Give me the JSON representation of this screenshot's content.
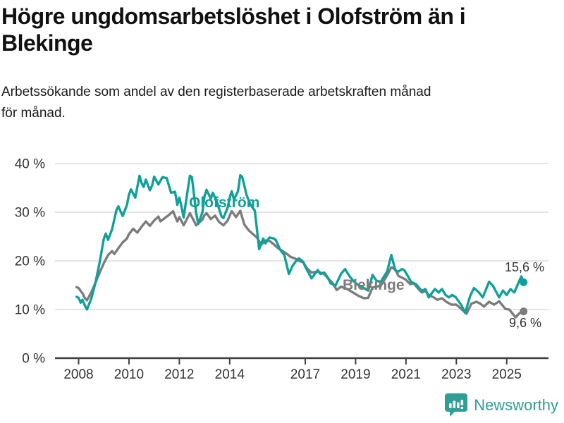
{
  "header": {
    "title_lines": [
      "Högre ungdomsarbetslöshet i Olofström än i",
      "Blekinge"
    ],
    "subtitle_lines": [
      "Arbetssökande som andel av den registerbaserade arbetskraften månad",
      "för månad."
    ]
  },
  "chart_data": {
    "type": "line",
    "title": "Högre ungdomsarbetslöshet i Olofström än i Blekinge",
    "subtitle": "Arbetssökande som andel av den registerbaserade arbetskraften månad för månad.",
    "unit": "%",
    "grid": "horizontal",
    "legend_position": "inline-labels",
    "xlim": [
      2007.1,
      2026.6
    ],
    "ylim": [
      0,
      42
    ],
    "x_tick_years": [
      2008,
      2010,
      2012,
      2014,
      2017,
      2019,
      2021,
      2023,
      2025
    ],
    "x_tick_labels": [
      "2008",
      "2010",
      "2012",
      "2014",
      "2017",
      "2019",
      "2021",
      "2023",
      "2025"
    ],
    "y_ticks": [
      0,
      10,
      20,
      30,
      40
    ],
    "y_tick_labels": [
      "0 %",
      "10 %",
      "20 %",
      "30 %",
      "40 %"
    ],
    "series": [
      {
        "name": "Olofström",
        "color": "#0fa199",
        "end_value": 15.6,
        "end_label": "15,6 %",
        "points": [
          [
            2007.92,
            12.6
          ],
          [
            2008.0,
            12.4
          ],
          [
            2008.08,
            11.4
          ],
          [
            2008.15,
            12.0
          ],
          [
            2008.25,
            10.8
          ],
          [
            2008.33,
            10.0
          ],
          [
            2008.5,
            12.2
          ],
          [
            2008.67,
            15.5
          ],
          [
            2008.83,
            19.5
          ],
          [
            2009.0,
            24.5
          ],
          [
            2009.08,
            25.6
          ],
          [
            2009.17,
            24.3
          ],
          [
            2009.33,
            26.5
          ],
          [
            2009.5,
            30.4
          ],
          [
            2009.58,
            31.2
          ],
          [
            2009.75,
            29.2
          ],
          [
            2009.92,
            31.5
          ],
          [
            2010.0,
            33.6
          ],
          [
            2010.08,
            34.7
          ],
          [
            2010.25,
            33.0
          ],
          [
            2010.42,
            37.5
          ],
          [
            2010.5,
            36.0
          ],
          [
            2010.58,
            35.2
          ],
          [
            2010.67,
            36.7
          ],
          [
            2010.83,
            34.5
          ],
          [
            2010.92,
            35.5
          ],
          [
            2011.0,
            37.3
          ],
          [
            2011.17,
            35.7
          ],
          [
            2011.33,
            37.2
          ],
          [
            2011.5,
            37.0
          ],
          [
            2011.67,
            34.0
          ],
          [
            2011.83,
            34.2
          ],
          [
            2011.92,
            31.5
          ],
          [
            2012.0,
            33.0
          ],
          [
            2012.08,
            31.3
          ],
          [
            2012.17,
            28.9
          ],
          [
            2012.33,
            34.5
          ],
          [
            2012.42,
            37.5
          ],
          [
            2012.5,
            37.2
          ],
          [
            2012.67,
            29.8
          ],
          [
            2012.75,
            27.6
          ],
          [
            2012.92,
            30.0
          ],
          [
            2013.0,
            33.3
          ],
          [
            2013.08,
            34.6
          ],
          [
            2013.25,
            32.8
          ],
          [
            2013.33,
            34.0
          ],
          [
            2013.5,
            32.0
          ],
          [
            2013.67,
            29.2
          ],
          [
            2013.75,
            28.8
          ],
          [
            2013.92,
            31.0
          ],
          [
            2014.0,
            33.0
          ],
          [
            2014.08,
            34.3
          ],
          [
            2014.17,
            32.6
          ],
          [
            2014.33,
            34.3
          ],
          [
            2014.42,
            37.6
          ],
          [
            2014.5,
            37.2
          ],
          [
            2014.67,
            33.5
          ],
          [
            2014.83,
            31.5
          ],
          [
            2015.0,
            30.3
          ],
          [
            2015.17,
            22.4
          ],
          [
            2015.33,
            24.6
          ],
          [
            2015.42,
            23.6
          ],
          [
            2015.58,
            24.8
          ],
          [
            2015.75,
            24.6
          ],
          [
            2015.83,
            24.3
          ],
          [
            2016.0,
            22.3
          ],
          [
            2016.17,
            21.2
          ],
          [
            2016.35,
            17.3
          ],
          [
            2016.5,
            19.0
          ],
          [
            2016.67,
            20.2
          ],
          [
            2016.75,
            20.5
          ],
          [
            2016.92,
            19.8
          ],
          [
            2017.0,
            18.8
          ],
          [
            2017.25,
            16.4
          ],
          [
            2017.5,
            18.1
          ],
          [
            2017.6,
            17.3
          ],
          [
            2017.75,
            17.6
          ],
          [
            2017.92,
            16.4
          ],
          [
            2018.0,
            15.4
          ],
          [
            2018.2,
            14.9
          ],
          [
            2018.42,
            17.3
          ],
          [
            2018.58,
            18.3
          ],
          [
            2018.75,
            16.9
          ],
          [
            2018.92,
            15.8
          ],
          [
            2019.08,
            15.1
          ],
          [
            2019.33,
            14.4
          ],
          [
            2019.5,
            13.9
          ],
          [
            2019.67,
            17.1
          ],
          [
            2019.83,
            15.9
          ],
          [
            2020.0,
            15.7
          ],
          [
            2020.25,
            17.8
          ],
          [
            2020.42,
            21.2
          ],
          [
            2020.58,
            18.0
          ],
          [
            2020.7,
            17.8
          ],
          [
            2020.84,
            18.3
          ],
          [
            2020.93,
            18.1
          ],
          [
            2021.07,
            16.9
          ],
          [
            2021.2,
            15.7
          ],
          [
            2021.4,
            15.2
          ],
          [
            2021.63,
            13.8
          ],
          [
            2021.77,
            14.2
          ],
          [
            2021.9,
            12.5
          ],
          [
            2022.15,
            14.2
          ],
          [
            2022.3,
            13.5
          ],
          [
            2022.43,
            14.2
          ],
          [
            2022.57,
            13.0
          ],
          [
            2022.7,
            12.5
          ],
          [
            2022.84,
            13.0
          ],
          [
            2022.98,
            12.5
          ],
          [
            2023.2,
            10.9
          ],
          [
            2023.35,
            9.3
          ],
          [
            2023.55,
            12.8
          ],
          [
            2023.7,
            14.4
          ],
          [
            2023.9,
            13.5
          ],
          [
            2024.05,
            12.5
          ],
          [
            2024.3,
            15.7
          ],
          [
            2024.45,
            14.9
          ],
          [
            2024.7,
            12.5
          ],
          [
            2024.85,
            13.9
          ],
          [
            2025.0,
            13.0
          ],
          [
            2025.15,
            14.2
          ],
          [
            2025.3,
            13.5
          ],
          [
            2025.5,
            15.9
          ],
          [
            2025.58,
            16.8
          ],
          [
            2025.67,
            15.6
          ]
        ]
      },
      {
        "name": "Blekinge",
        "color": "#7c7c7c",
        "end_value": 9.6,
        "end_label": "9,6 %",
        "points": [
          [
            2007.92,
            14.6
          ],
          [
            2008.0,
            14.4
          ],
          [
            2008.17,
            13.2
          ],
          [
            2008.25,
            12.3
          ],
          [
            2008.33,
            11.9
          ],
          [
            2008.5,
            13.5
          ],
          [
            2008.67,
            15.5
          ],
          [
            2008.83,
            17.5
          ],
          [
            2009.0,
            19.5
          ],
          [
            2009.17,
            21.2
          ],
          [
            2009.33,
            22.0
          ],
          [
            2009.42,
            21.4
          ],
          [
            2009.58,
            22.6
          ],
          [
            2009.75,
            23.8
          ],
          [
            2009.92,
            24.6
          ],
          [
            2010.0,
            25.5
          ],
          [
            2010.17,
            26.6
          ],
          [
            2010.33,
            25.8
          ],
          [
            2010.5,
            27.0
          ],
          [
            2010.67,
            28.1
          ],
          [
            2010.83,
            27.2
          ],
          [
            2011.0,
            28.3
          ],
          [
            2011.17,
            29.1
          ],
          [
            2011.25,
            28.1
          ],
          [
            2011.42,
            28.8
          ],
          [
            2011.58,
            29.4
          ],
          [
            2011.75,
            30.2
          ],
          [
            2011.92,
            28.1
          ],
          [
            2012.0,
            29.0
          ],
          [
            2012.17,
            27.3
          ],
          [
            2012.42,
            29.8
          ],
          [
            2012.58,
            28.2
          ],
          [
            2012.67,
            27.3
          ],
          [
            2012.92,
            28.5
          ],
          [
            2013.0,
            29.4
          ],
          [
            2013.08,
            29.8
          ],
          [
            2013.25,
            28.6
          ],
          [
            2013.42,
            29.3
          ],
          [
            2013.58,
            28.0
          ],
          [
            2013.75,
            27.3
          ],
          [
            2013.92,
            28.3
          ],
          [
            2014.0,
            29.3
          ],
          [
            2014.08,
            30.2
          ],
          [
            2014.25,
            29.0
          ],
          [
            2014.42,
            30.3
          ],
          [
            2014.58,
            27.5
          ],
          [
            2014.75,
            26.3
          ],
          [
            2014.92,
            25.5
          ],
          [
            2015.08,
            24.8
          ],
          [
            2015.25,
            23.3
          ],
          [
            2015.42,
            24.2
          ],
          [
            2015.58,
            24.1
          ],
          [
            2015.75,
            23.4
          ],
          [
            2015.92,
            22.6
          ],
          [
            2016.08,
            22.1
          ],
          [
            2016.25,
            21.5
          ],
          [
            2016.42,
            20.8
          ],
          [
            2016.58,
            20.5
          ],
          [
            2016.75,
            20.0
          ],
          [
            2016.92,
            19.7
          ],
          [
            2017.08,
            18.4
          ],
          [
            2017.25,
            17.6
          ],
          [
            2017.5,
            17.8
          ],
          [
            2017.75,
            17.3
          ],
          [
            2017.92,
            16.3
          ],
          [
            2018.08,
            15.5
          ],
          [
            2018.25,
            14.0
          ],
          [
            2018.42,
            14.7
          ],
          [
            2018.67,
            14.2
          ],
          [
            2018.92,
            13.4
          ],
          [
            2019.08,
            12.9
          ],
          [
            2019.33,
            12.3
          ],
          [
            2019.5,
            12.4
          ],
          [
            2019.67,
            14.5
          ],
          [
            2019.83,
            14.7
          ],
          [
            2020.0,
            14.9
          ],
          [
            2020.25,
            17.0
          ],
          [
            2020.42,
            18.7
          ],
          [
            2020.58,
            18.2
          ],
          [
            2020.7,
            16.9
          ],
          [
            2020.9,
            16.4
          ],
          [
            2021.0,
            16.1
          ],
          [
            2021.17,
            15.2
          ],
          [
            2021.3,
            15.4
          ],
          [
            2021.5,
            14.2
          ],
          [
            2021.63,
            13.5
          ],
          [
            2021.77,
            13.8
          ],
          [
            2021.9,
            13.0
          ],
          [
            2022.1,
            12.5
          ],
          [
            2022.24,
            12.0
          ],
          [
            2022.43,
            12.3
          ],
          [
            2022.6,
            11.6
          ],
          [
            2022.8,
            11.0
          ],
          [
            2023.0,
            11.0
          ],
          [
            2023.2,
            10.1
          ],
          [
            2023.4,
            9.1
          ],
          [
            2023.6,
            11.2
          ],
          [
            2023.8,
            11.6
          ],
          [
            2023.95,
            11.2
          ],
          [
            2024.1,
            10.6
          ],
          [
            2024.3,
            11.6
          ],
          [
            2024.5,
            11.0
          ],
          [
            2024.7,
            11.7
          ],
          [
            2024.95,
            10.1
          ],
          [
            2025.1,
            10.0
          ],
          [
            2025.35,
            8.4
          ],
          [
            2025.5,
            9.2
          ],
          [
            2025.67,
            9.6
          ]
        ]
      }
    ]
  },
  "footer": {
    "brand": "Newsworthy",
    "logo_icon": "bar-chart-speech-bubble"
  },
  "colors": {
    "olofstrom": "#0fa199",
    "blekinge": "#7c7c7c",
    "brand_teal": "#2f9e94",
    "gridline": "#dcdcdc",
    "axis": "#3f3f3f",
    "tick_text": "#333333"
  }
}
